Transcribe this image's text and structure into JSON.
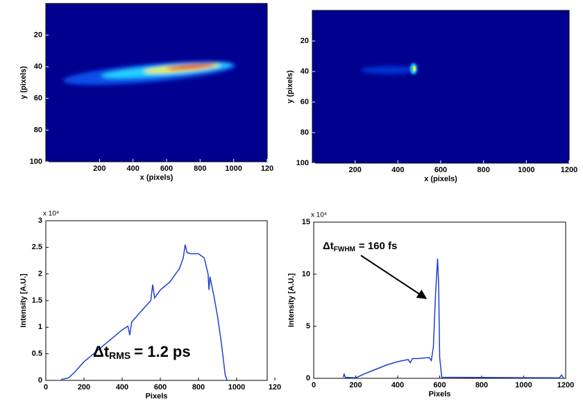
{
  "chart_data": [
    {
      "type": "heatmap",
      "xlabel": "x (pixels)",
      "ylabel": "y (pixels)",
      "xlim": [
        -120,
        1200
      ],
      "ylim": [
        100,
        0
      ],
      "xticks": [
        200,
        400,
        600,
        800,
        1000,
        {
          "value": 1200,
          "label": "120"
        }
      ],
      "yticks": [
        20,
        40,
        60,
        80,
        100
      ]
    },
    {
      "type": "heatmap",
      "xlabel": "x (pixels)",
      "ylabel": "y (pixels)",
      "xlim": [
        0,
        1200
      ],
      "ylim": [
        100,
        0
      ],
      "xticks": [
        200,
        400,
        600,
        800,
        1000,
        1200
      ],
      "yticks": [
        20,
        40,
        60,
        80,
        100
      ]
    },
    {
      "type": "line",
      "xlabel": "Pixels",
      "ylabel": "Intensity [A.U.]",
      "multiplier": "x 10⁴",
      "color": "#1f3fd0",
      "xlim": [
        0,
        1160
      ],
      "ylim": [
        0,
        3
      ],
      "xticks": [
        0,
        200,
        400,
        600,
        800,
        1000,
        {
          "value": 1200,
          "label": "120"
        }
      ],
      "yticks": [
        0,
        0.5,
        1,
        1.5,
        2,
        2.5,
        3
      ],
      "x": [
        80,
        100,
        120,
        150,
        200,
        250,
        300,
        350,
        400,
        430,
        440,
        450,
        500,
        550,
        560,
        570,
        600,
        650,
        700,
        720,
        730,
        740,
        760,
        800,
        830,
        850,
        855,
        860,
        880,
        900,
        920,
        940,
        950
      ],
      "values": [
        0.02,
        0.03,
        0.05,
        0.15,
        0.35,
        0.5,
        0.65,
        0.8,
        0.95,
        1.02,
        0.85,
        1.1,
        1.3,
        1.5,
        1.8,
        1.55,
        1.7,
        1.85,
        2.1,
        2.3,
        2.55,
        2.4,
        2.38,
        2.38,
        2.3,
        2.0,
        1.7,
        1.95,
        1.6,
        1.2,
        0.7,
        0.1,
        0
      ],
      "annotation": {
        "symbol": "Δt",
        "subscript": "RMS",
        "text": "= 1.2 ps"
      }
    },
    {
      "type": "line",
      "xlabel": "Pixels",
      "ylabel": "Intensity [A.U.]",
      "multiplier": "x 10⁴",
      "color": "#1f3fd0",
      "xlim": [
        0,
        1200
      ],
      "ylim": [
        0,
        15
      ],
      "xticks": [
        0,
        200,
        400,
        600,
        800,
        1000,
        1200
      ],
      "yticks": [
        0,
        5,
        10,
        15
      ],
      "x": [
        140,
        145,
        150,
        200,
        250,
        300,
        350,
        400,
        450,
        460,
        470,
        500,
        550,
        560,
        570,
        580,
        590,
        595,
        600,
        610,
        1170,
        1180,
        1190
      ],
      "values": [
        0.1,
        0.4,
        0.1,
        0.05,
        0.5,
        0.9,
        1.3,
        1.6,
        1.8,
        1.5,
        1.9,
        1.9,
        2.0,
        1.7,
        3.0,
        8.0,
        11.5,
        9.0,
        2.0,
        0.1,
        0.05,
        0.3,
        0.05
      ],
      "annotation": {
        "symbol": "Δt",
        "subscript": "FWHM",
        "text": "= 160 fs"
      }
    }
  ]
}
